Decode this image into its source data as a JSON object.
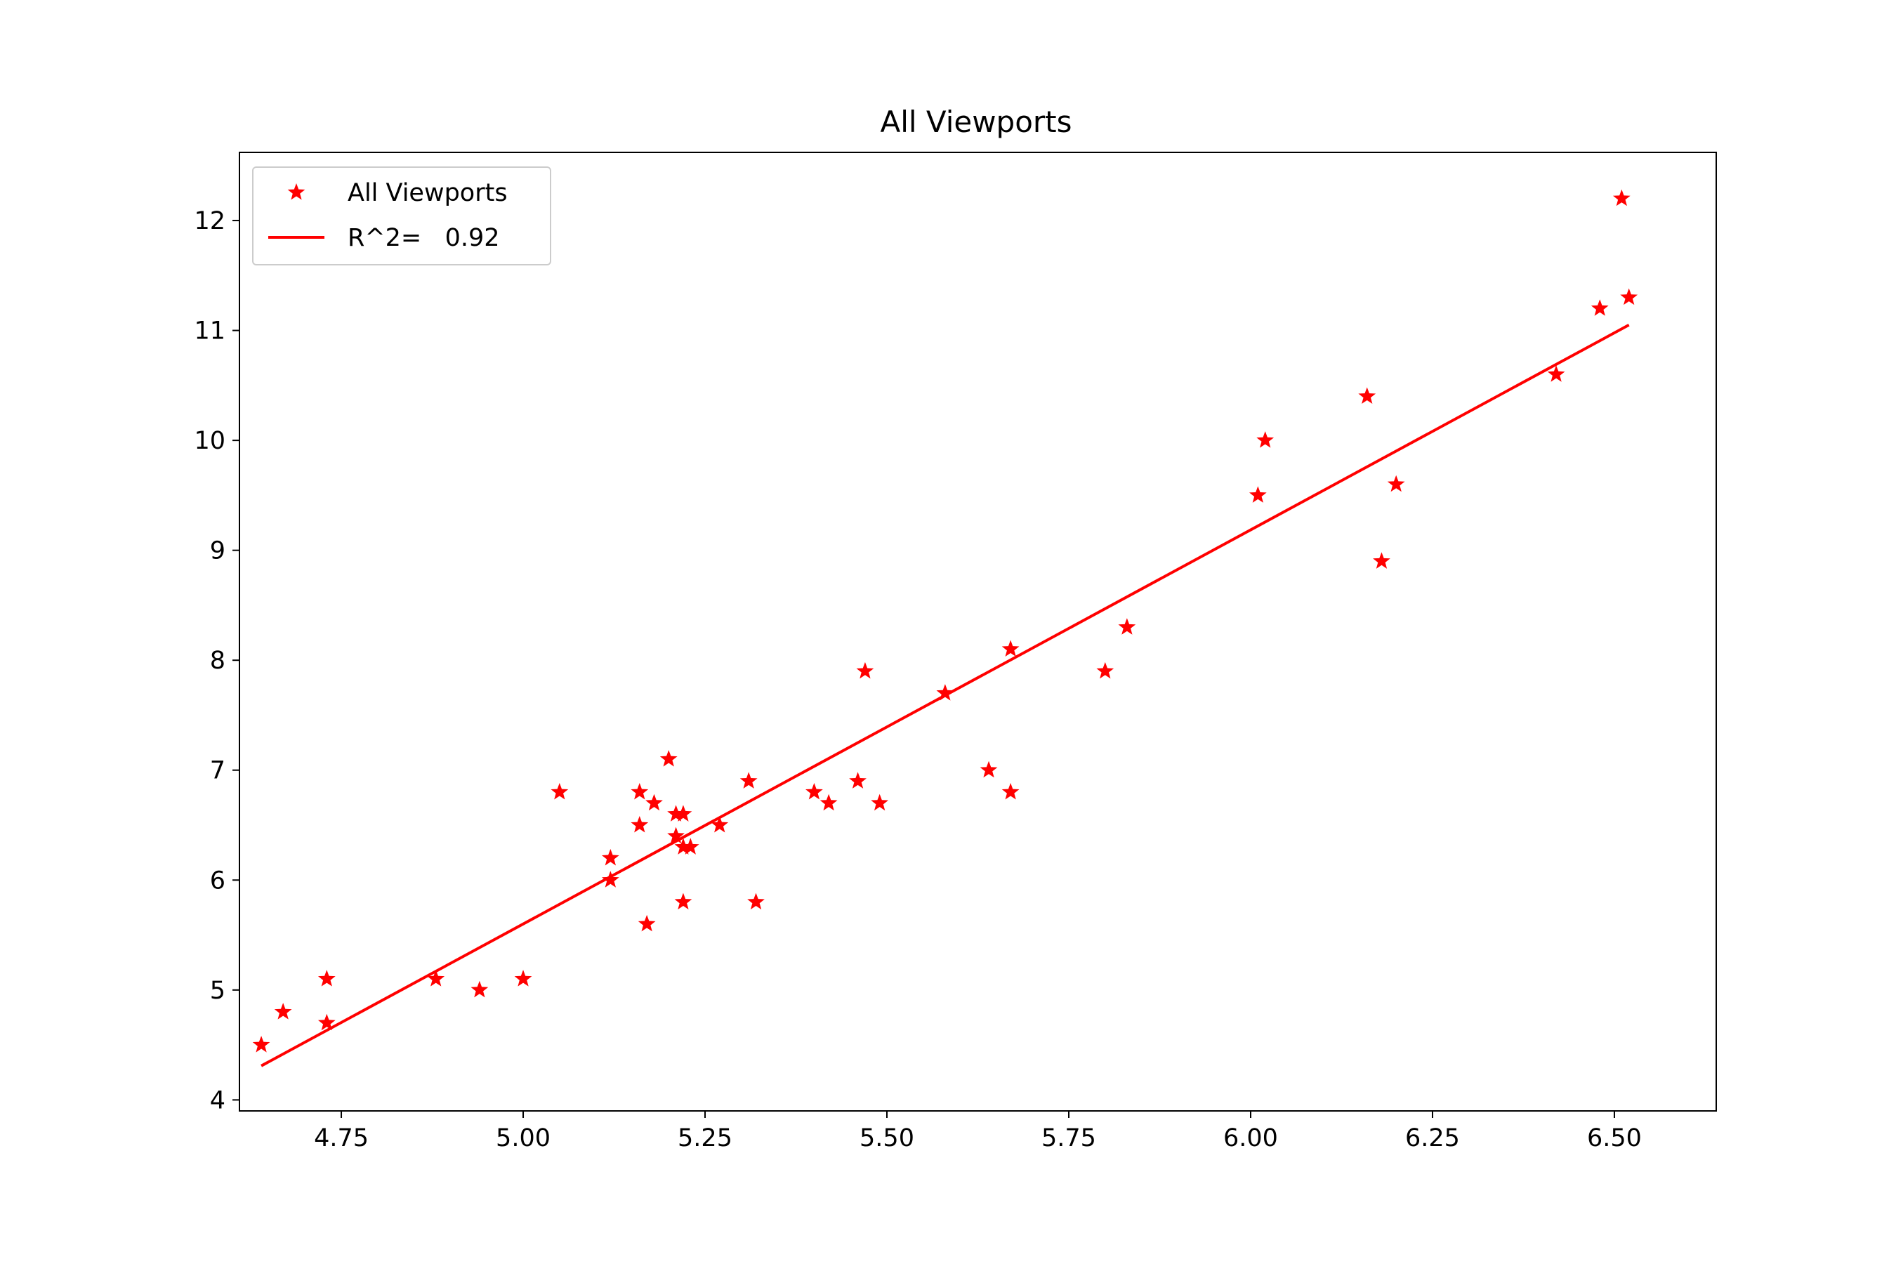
{
  "chart_data": {
    "type": "scatter",
    "title": "All Viewports",
    "xlabel": "",
    "ylabel": "",
    "xlim": [
      4.61,
      6.64
    ],
    "ylim": [
      3.9,
      12.62
    ],
    "xticks": [
      "4.75",
      "5.00",
      "5.25",
      "5.50",
      "5.75",
      "6.00",
      "6.25",
      "6.50"
    ],
    "yticks": [
      "4",
      "5",
      "6",
      "7",
      "8",
      "9",
      "10",
      "11",
      "12"
    ],
    "grid": false,
    "legend_position": "top-left",
    "color": "#ff0000",
    "series": [
      {
        "name": "All Viewports",
        "marker": "star",
        "points": [
          [
            4.64,
            4.5
          ],
          [
            4.67,
            4.8
          ],
          [
            4.73,
            5.1
          ],
          [
            4.73,
            4.7
          ],
          [
            4.88,
            5.1
          ],
          [
            4.94,
            5.0
          ],
          [
            5.0,
            5.1
          ],
          [
            5.05,
            6.8
          ],
          [
            5.12,
            6.2
          ],
          [
            5.12,
            6.0
          ],
          [
            5.16,
            6.8
          ],
          [
            5.16,
            6.5
          ],
          [
            5.17,
            5.6
          ],
          [
            5.18,
            6.7
          ],
          [
            5.2,
            7.1
          ],
          [
            5.21,
            6.6
          ],
          [
            5.21,
            6.4
          ],
          [
            5.22,
            6.6
          ],
          [
            5.22,
            6.3
          ],
          [
            5.22,
            5.8
          ],
          [
            5.23,
            6.3
          ],
          [
            5.27,
            6.5
          ],
          [
            5.31,
            6.9
          ],
          [
            5.32,
            5.8
          ],
          [
            5.4,
            6.8
          ],
          [
            5.42,
            6.7
          ],
          [
            5.46,
            6.9
          ],
          [
            5.47,
            7.9
          ],
          [
            5.49,
            6.7
          ],
          [
            5.58,
            7.7
          ],
          [
            5.64,
            7.0
          ],
          [
            5.67,
            8.1
          ],
          [
            5.67,
            6.8
          ],
          [
            5.8,
            7.9
          ],
          [
            5.83,
            8.3
          ],
          [
            6.01,
            9.5
          ],
          [
            6.02,
            10.0
          ],
          [
            6.16,
            10.4
          ],
          [
            6.18,
            8.9
          ],
          [
            6.2,
            9.6
          ],
          [
            6.42,
            10.6
          ],
          [
            6.48,
            11.2
          ],
          [
            6.51,
            12.2
          ],
          [
            6.52,
            11.3
          ]
        ]
      },
      {
        "name": "R^2=   0.92",
        "type": "line",
        "points": [
          [
            4.64,
            4.31
          ],
          [
            6.52,
            11.05
          ]
        ]
      }
    ]
  }
}
